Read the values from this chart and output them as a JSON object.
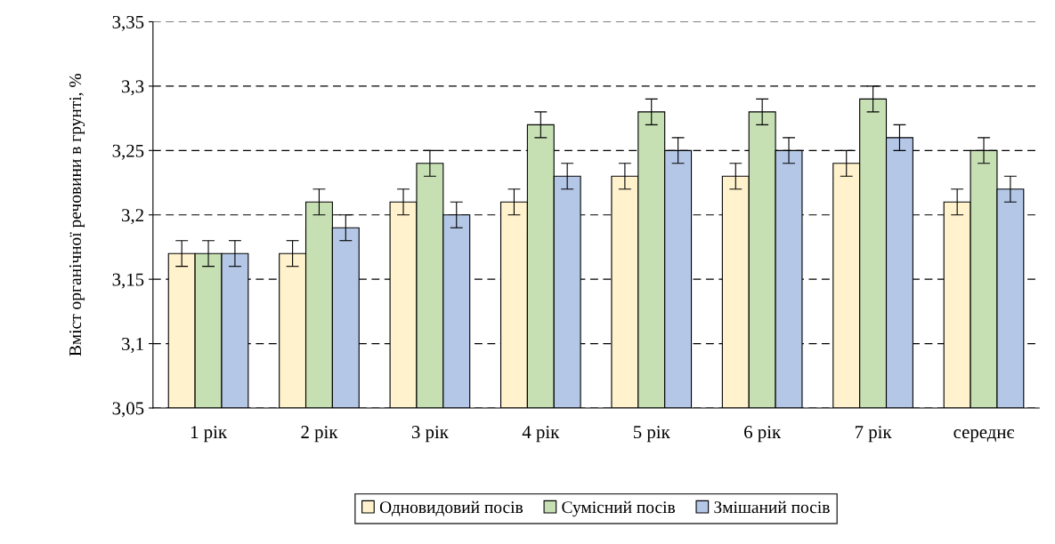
{
  "chart_data": {
    "type": "bar",
    "ylabel": "Вміст органічної речовини в грунті, %",
    "categories": [
      "1 рік",
      "2 рік",
      "3 рік",
      "4 рік",
      "5 рік",
      "6 рік",
      "7 рік",
      "середнє"
    ],
    "series": [
      {
        "name": "Одновидовий посів",
        "color": "#fff2cc",
        "values": [
          3.17,
          3.17,
          3.21,
          3.21,
          3.23,
          3.23,
          3.24,
          3.21
        ],
        "errors": [
          0.01,
          0.01,
          0.01,
          0.01,
          0.01,
          0.01,
          0.01,
          0.01
        ]
      },
      {
        "name": "Сумісний посів",
        "color": "#c6e0b4",
        "values": [
          3.17,
          3.21,
          3.24,
          3.27,
          3.28,
          3.28,
          3.29,
          3.25
        ],
        "errors": [
          0.01,
          0.01,
          0.01,
          0.01,
          0.01,
          0.01,
          0.01,
          0.01
        ]
      },
      {
        "name": "Змішаний посів",
        "color": "#b4c7e7",
        "values": [
          3.17,
          3.19,
          3.2,
          3.23,
          3.25,
          3.25,
          3.26,
          3.22
        ],
        "errors": [
          0.01,
          0.01,
          0.01,
          0.01,
          0.01,
          0.01,
          0.01,
          0.01
        ]
      }
    ],
    "ylim": [
      3.05,
      3.35
    ],
    "yticks": [
      {
        "value": 3.05,
        "label": "3,05"
      },
      {
        "value": 3.1,
        "label": "3,1"
      },
      {
        "value": 3.15,
        "label": "3,15"
      },
      {
        "value": 3.2,
        "label": "3,2"
      },
      {
        "value": 3.25,
        "label": "3,25"
      },
      {
        "value": 3.3,
        "label": "3,3"
      },
      {
        "value": 3.35,
        "label": "3,35"
      }
    ],
    "grid": "y",
    "legend": "bottom"
  }
}
